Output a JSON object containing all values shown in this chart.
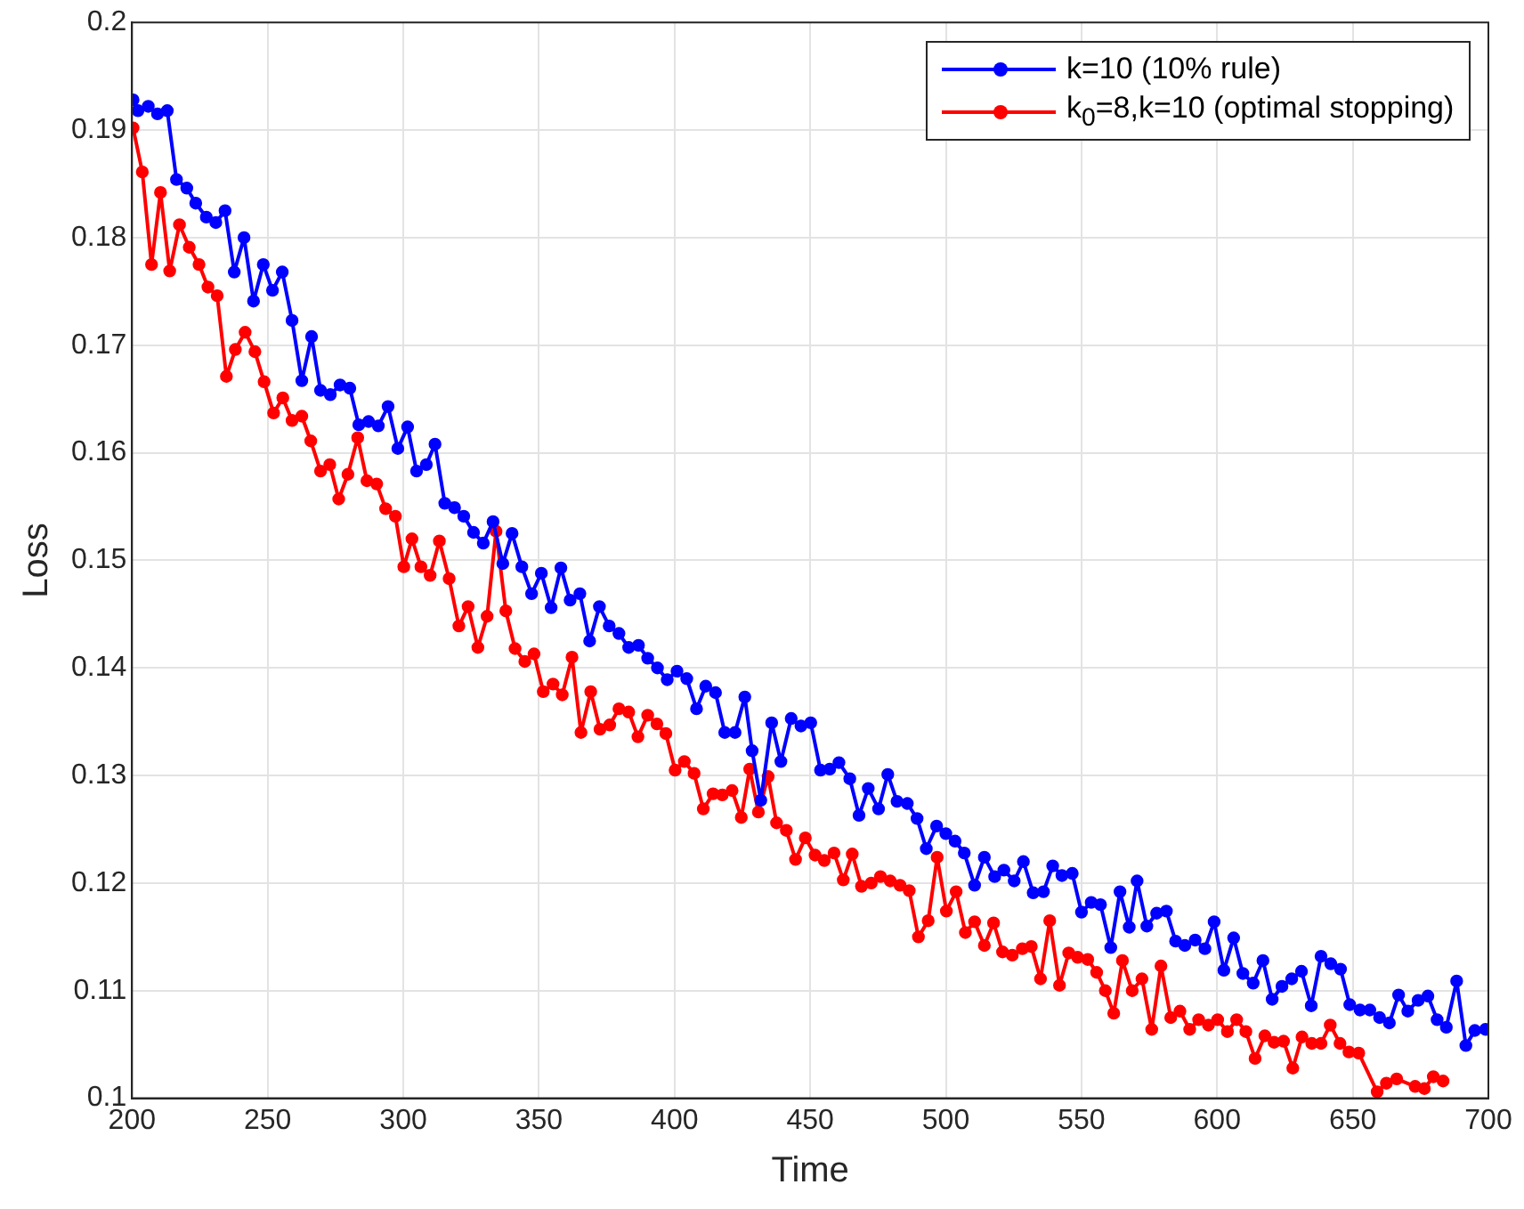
{
  "chart_data": {
    "type": "line",
    "xlabel": "Time",
    "ylabel": "Loss",
    "xlim": [
      200,
      700
    ],
    "ylim": [
      0.1,
      0.2
    ],
    "xticks": [
      200,
      250,
      300,
      350,
      400,
      450,
      500,
      550,
      600,
      650,
      700
    ],
    "yticks": [
      0.1,
      0.11,
      0.12,
      0.13,
      0.14,
      0.15,
      0.16,
      0.17,
      0.18,
      0.19,
      0.2
    ],
    "grid": true,
    "legend": "top right",
    "marker": "circle",
    "line_style": "solid",
    "series": [
      {
        "name": "k=10 (10% rule)",
        "color": "#0000ff",
        "x": [
          200.4,
          202.2,
          206,
          209.4,
          213,
          216.4,
          220.2,
          223.5,
          227.4,
          230.9,
          234.3,
          237.7,
          241.3,
          244.8,
          248.4,
          251.8,
          255.4,
          259,
          262.6,
          266.2,
          269.5,
          273.1,
          276.7,
          280.3,
          283.6,
          287.2,
          290.8,
          294.4,
          298,
          301.6,
          304.9,
          308.5,
          311.7,
          315.3,
          318.9,
          322.3,
          325.9,
          329.5,
          333.1,
          336.7,
          340.1,
          343.7,
          347.3,
          350.9,
          354.5,
          358.1,
          361.5,
          365.1,
          368.7,
          372.3,
          375.9,
          379.5,
          383.1,
          386.7,
          390.1,
          393.7,
          397.3,
          400.9,
          404.5,
          408.1,
          411.5,
          415.1,
          418.5,
          422.3,
          425.9,
          428.6,
          431.8,
          435.8,
          439.2,
          443,
          446.6,
          450.2,
          453.8,
          457.2,
          460.6,
          464.6,
          468,
          471.4,
          475.2,
          478.6,
          482,
          485.8,
          489.4,
          492.8,
          496.6,
          500,
          503.4,
          506.8,
          510.6,
          514.2,
          518,
          521.4,
          525.2,
          528.6,
          532.2,
          536,
          539.4,
          542.8,
          546.6,
          550,
          553.6,
          557,
          560.8,
          564.2,
          567.6,
          570.5,
          574.1,
          577.7,
          581.3,
          584.7,
          588.1,
          591.9,
          595.5,
          598.9,
          602.5,
          606.1,
          609.5,
          613.3,
          616.9,
          620.3,
          623.9,
          627.5,
          631.1,
          634.7,
          638.3,
          641.9,
          645.5,
          648.9,
          652.7,
          656.3,
          659.9,
          663.5,
          666.9,
          670.3,
          674.1,
          677.7,
          681.1,
          684.5,
          688.3,
          691.7,
          695,
          698.9
        ],
        "values": [
          0.1928,
          0.1918,
          0.1922,
          0.1915,
          0.1918,
          0.1854,
          0.1846,
          0.1832,
          0.1819,
          0.1814,
          0.1825,
          0.1768,
          0.18,
          0.1741,
          0.1775,
          0.1751,
          0.1768,
          0.1723,
          0.1667,
          0.1708,
          0.1658,
          0.1654,
          0.1663,
          0.166,
          0.1626,
          0.1629,
          0.1625,
          0.1643,
          0.1604,
          0.1624,
          0.1583,
          0.1589,
          0.1608,
          0.1553,
          0.1549,
          0.1541,
          0.1526,
          0.1516,
          0.1536,
          0.1497,
          0.1525,
          0.1494,
          0.1469,
          0.1488,
          0.1456,
          0.1493,
          0.1463,
          0.1469,
          0.1425,
          0.1457,
          0.1439,
          0.1432,
          0.1419,
          0.1421,
          0.1409,
          0.14,
          0.1389,
          0.1397,
          0.139,
          0.1362,
          0.1383,
          0.1377,
          0.134,
          0.134,
          0.1373,
          0.1323,
          0.1277,
          0.1349,
          0.1313,
          0.1353,
          0.1346,
          0.1349,
          0.1305,
          0.1306,
          0.1312,
          0.1297,
          0.1263,
          0.1288,
          0.1269,
          0.1301,
          0.1276,
          0.1274,
          0.126,
          0.1232,
          0.1253,
          0.1246,
          0.1239,
          0.1228,
          0.1198,
          0.1224,
          0.1206,
          0.1212,
          0.1202,
          0.122,
          0.1191,
          0.1192,
          0.1216,
          0.1207,
          0.1209,
          0.1173,
          0.1182,
          0.118,
          0.114,
          0.1192,
          0.1159,
          0.1202,
          0.116,
          0.1172,
          0.1174,
          0.1146,
          0.1142,
          0.1147,
          0.1139,
          0.1164,
          0.1119,
          0.1149,
          0.1116,
          0.1107,
          0.1128,
          0.1092,
          0.1104,
          0.1111,
          0.1118,
          0.1086,
          0.1132,
          0.1125,
          0.112,
          0.1087,
          0.1082,
          0.1082,
          0.1075,
          0.107,
          0.1096,
          0.1081,
          0.1091,
          0.1095,
          0.1073,
          0.1066,
          0.1109,
          0.1049,
          0.1063,
          0.1064
        ]
      },
      {
        "name": "k$_{0}$=8,k=10 (optimal stopping)",
        "color": "#ff0000",
        "x": [
          200.4,
          203.8,
          207.2,
          210.5,
          213.9,
          217.5,
          221.1,
          224.7,
          228,
          231.4,
          234.8,
          238.1,
          241.7,
          245.3,
          248.7,
          252.2,
          255.6,
          259,
          262.6,
          265.9,
          269.5,
          272.9,
          276.2,
          279.6,
          283.2,
          286.6,
          290.2,
          293.5,
          297.1,
          300.2,
          303.2,
          306.5,
          309.9,
          313.3,
          316.9,
          320.5,
          323.9,
          327.5,
          330.9,
          334.2,
          337.8,
          341.2,
          344.8,
          348.2,
          351.6,
          355.2,
          358.6,
          362.2,
          365.5,
          369.1,
          372.5,
          376.1,
          379.5,
          383.1,
          386.5,
          390.1,
          393.5,
          396.8,
          400.2,
          403.6,
          407.2,
          410.6,
          414.2,
          417.6,
          421.2,
          424.6,
          427.7,
          430.9,
          434.5,
          437.6,
          441.2,
          444.6,
          448.2,
          451.8,
          455.2,
          458.8,
          462.2,
          465.5,
          468.9,
          472.5,
          475.9,
          479.5,
          483.1,
          486.5,
          489.9,
          493.5,
          496.8,
          500.2,
          503.8,
          507.2,
          510.6,
          514.2,
          517.6,
          520.9,
          524.5,
          528.2,
          531.5,
          534.9,
          538.3,
          541.9,
          545.3,
          548.6,
          552.3,
          555.6,
          558.8,
          561.9,
          565.1,
          568.7,
          572.3,
          575.9,
          579.3,
          582.9,
          586.3,
          589.9,
          593.2,
          596.8,
          600.2,
          603.8,
          607.2,
          610.6,
          614,
          617.6,
          621,
          624.5,
          627.9,
          631.3,
          634.9,
          638.3,
          641.7,
          645.3,
          648.6,
          652.2,
          659,
          662.4,
          666.2,
          673,
          676.4,
          679.7,
          683.3
        ],
        "values": [
          0.1902,
          0.1861,
          0.1775,
          0.1842,
          0.1769,
          0.1812,
          0.1791,
          0.1775,
          0.1754,
          0.1746,
          0.1671,
          0.1696,
          0.1712,
          0.1694,
          0.1666,
          0.1637,
          0.1651,
          0.163,
          0.1634,
          0.1611,
          0.1583,
          0.1589,
          0.1557,
          0.158,
          0.1614,
          0.1574,
          0.1571,
          0.1548,
          0.1541,
          0.1494,
          0.152,
          0.1494,
          0.1486,
          0.1518,
          0.1483,
          0.1439,
          0.1457,
          0.1419,
          0.1448,
          0.1527,
          0.1453,
          0.1418,
          0.1406,
          0.1413,
          0.1378,
          0.1385,
          0.1375,
          0.141,
          0.134,
          0.1378,
          0.1343,
          0.1347,
          0.1362,
          0.1359,
          0.1336,
          0.1356,
          0.1348,
          0.1339,
          0.1305,
          0.1313,
          0.1302,
          0.1269,
          0.1283,
          0.1282,
          0.1286,
          0.1261,
          0.1306,
          0.1266,
          0.1299,
          0.1256,
          0.1249,
          0.1222,
          0.1242,
          0.1226,
          0.1221,
          0.1228,
          0.1203,
          0.1227,
          0.1197,
          0.12,
          0.1206,
          0.1202,
          0.1198,
          0.1193,
          0.115,
          0.1165,
          0.1224,
          0.1174,
          0.1192,
          0.1154,
          0.1164,
          0.1142,
          0.1163,
          0.1136,
          0.1133,
          0.1139,
          0.1141,
          0.1111,
          0.1165,
          0.1105,
          0.1135,
          0.1131,
          0.1129,
          0.1117,
          0.11,
          0.1079,
          0.1128,
          0.11,
          0.1111,
          0.1064,
          0.1123,
          0.1075,
          0.1081,
          0.1064,
          0.1073,
          0.1068,
          0.1073,
          0.1062,
          0.1073,
          0.1062,
          0.1037,
          0.1058,
          0.1052,
          0.1053,
          0.1028,
          0.1057,
          0.1051,
          0.1051,
          0.1068,
          0.1051,
          0.1043,
          0.1042,
          0.1006,
          0.1014,
          0.1018,
          0.1011,
          0.1009,
          0.102,
          0.1016
        ]
      }
    ]
  }
}
